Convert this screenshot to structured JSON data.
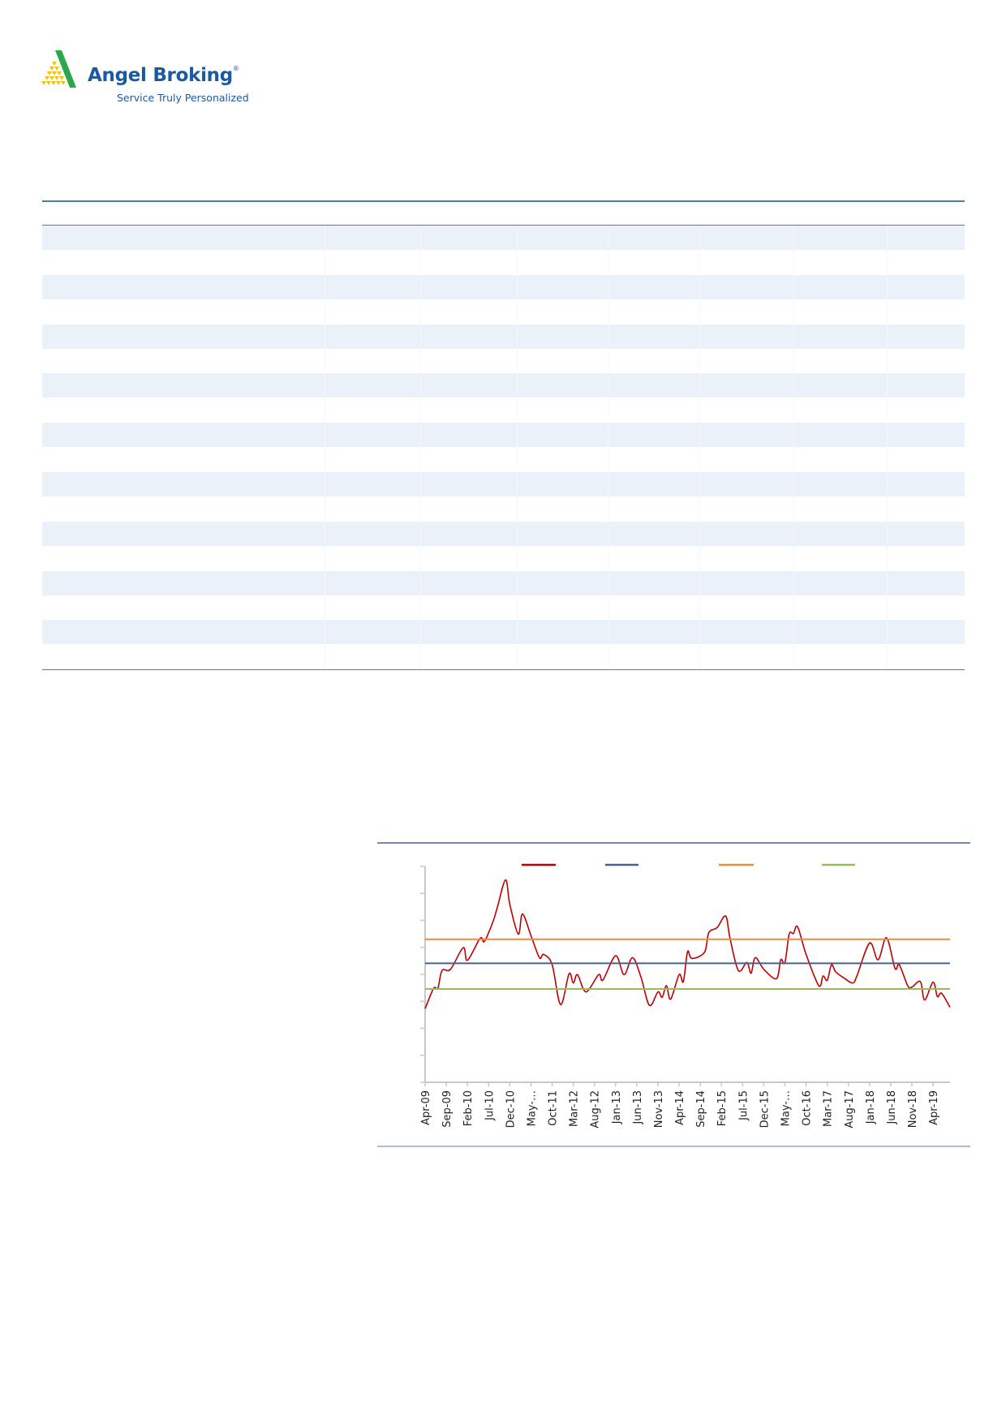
{
  "logo": {
    "name": "Angel Broking",
    "registered": "®",
    "tagline": "Service Truly Personalized",
    "colors": {
      "brand_blue": "#1a5aa0",
      "green": "#2aa84a",
      "yellow": "#f5c20f"
    }
  },
  "table": {
    "rule_color": "#4f7bac",
    "stripe_color": "#eaf1f8"
  },
  "chart_data": {
    "type": "line",
    "title": "",
    "xlabel": "",
    "ylabel": "",
    "y_tick_labels_shown": false,
    "ylim": [
      0,
      8
    ],
    "y_ticks": [
      0,
      1,
      2,
      3,
      4,
      5,
      6,
      7,
      8
    ],
    "xlim": [
      "2009-04",
      "2019-08"
    ],
    "x_tick_labels": [
      "Apr-09",
      "Sep-09",
      "Feb-10",
      "Jul-10",
      "Dec-10",
      "May-…",
      "Oct-11",
      "Mar-12",
      "Aug-12",
      "Jan-13",
      "Jun-13",
      "Nov-13",
      "Apr-14",
      "Sep-14",
      "Feb-15",
      "Jul-15",
      "Dec-15",
      "May-…",
      "Oct-16",
      "Mar-17",
      "Aug-17",
      "Jan-18",
      "Jun-18",
      "Nov-18",
      "Apr-19"
    ],
    "grid": false,
    "legend": "top",
    "series": [
      {
        "color": "#c00000",
        "kind": "line",
        "points": [
          [
            "2009-04",
            2.73
          ],
          [
            "2009-06",
            3.48
          ],
          [
            "2009-07",
            3.48
          ],
          [
            "2009-08",
            4.14
          ],
          [
            "2009-10",
            4.19
          ],
          [
            "2010-01",
            4.99
          ],
          [
            "2010-02",
            4.52
          ],
          [
            "2010-05",
            5.34
          ],
          [
            "2010-06",
            5.22
          ],
          [
            "2010-08",
            5.94
          ],
          [
            "2010-09",
            6.45
          ],
          [
            "2010-11",
            7.5
          ],
          [
            "2010-12",
            6.6
          ],
          [
            "2011-02",
            5.49
          ],
          [
            "2011-03",
            6.24
          ],
          [
            "2011-05",
            5.44
          ],
          [
            "2011-07",
            4.62
          ],
          [
            "2011-08",
            4.74
          ],
          [
            "2011-10",
            4.36
          ],
          [
            "2011-12",
            2.88
          ],
          [
            "2012-02",
            4.02
          ],
          [
            "2012-03",
            3.68
          ],
          [
            "2012-04",
            3.99
          ],
          [
            "2012-06",
            3.35
          ],
          [
            "2012-09",
            3.99
          ],
          [
            "2012-10",
            3.79
          ],
          [
            "2013-01",
            4.69
          ],
          [
            "2013-03",
            3.99
          ],
          [
            "2013-05",
            4.62
          ],
          [
            "2013-07",
            3.89
          ],
          [
            "2013-09",
            2.85
          ],
          [
            "2013-11",
            3.35
          ],
          [
            "2013-12",
            3.15
          ],
          [
            "2014-01",
            3.58
          ],
          [
            "2014-02",
            3.08
          ],
          [
            "2014-04",
            3.99
          ],
          [
            "2014-05",
            3.73
          ],
          [
            "2014-06",
            4.84
          ],
          [
            "2014-07",
            4.59
          ],
          [
            "2014-10",
            4.82
          ],
          [
            "2014-11",
            5.54
          ],
          [
            "2015-01",
            5.74
          ],
          [
            "2015-03",
            6.16
          ],
          [
            "2015-04",
            5.36
          ],
          [
            "2015-06",
            4.14
          ],
          [
            "2015-08",
            4.44
          ],
          [
            "2015-09",
            4.04
          ],
          [
            "2015-10",
            4.62
          ],
          [
            "2015-12",
            4.19
          ],
          [
            "2016-03",
            3.84
          ],
          [
            "2016-04",
            4.54
          ],
          [
            "2016-05",
            4.44
          ],
          [
            "2016-06",
            5.49
          ],
          [
            "2016-07",
            5.52
          ],
          [
            "2016-08",
            5.76
          ],
          [
            "2016-10",
            4.74
          ],
          [
            "2017-01",
            3.58
          ],
          [
            "2017-02",
            3.94
          ],
          [
            "2017-03",
            3.78
          ],
          [
            "2017-04",
            4.36
          ],
          [
            "2017-05",
            4.09
          ],
          [
            "2017-07",
            3.86
          ],
          [
            "2017-09",
            3.68
          ],
          [
            "2017-10",
            3.94
          ],
          [
            "2018-01",
            5.16
          ],
          [
            "2018-03",
            4.54
          ],
          [
            "2018-05",
            5.36
          ],
          [
            "2018-07",
            4.22
          ],
          [
            "2018-08",
            4.36
          ],
          [
            "2018-10",
            3.58
          ],
          [
            "2018-11",
            3.53
          ],
          [
            "2019-01",
            3.73
          ],
          [
            "2019-02",
            3.05
          ],
          [
            "2019-04",
            3.71
          ],
          [
            "2019-05",
            3.18
          ],
          [
            "2019-06",
            3.3
          ],
          [
            "2019-08",
            2.78
          ]
        ]
      },
      {
        "color": "#44628f",
        "kind": "constant",
        "value": 4.41
      },
      {
        "color": "#ed8b3a",
        "kind": "constant",
        "value": 5.3
      },
      {
        "color": "#9bbb59",
        "kind": "constant",
        "value": 3.46
      }
    ]
  }
}
